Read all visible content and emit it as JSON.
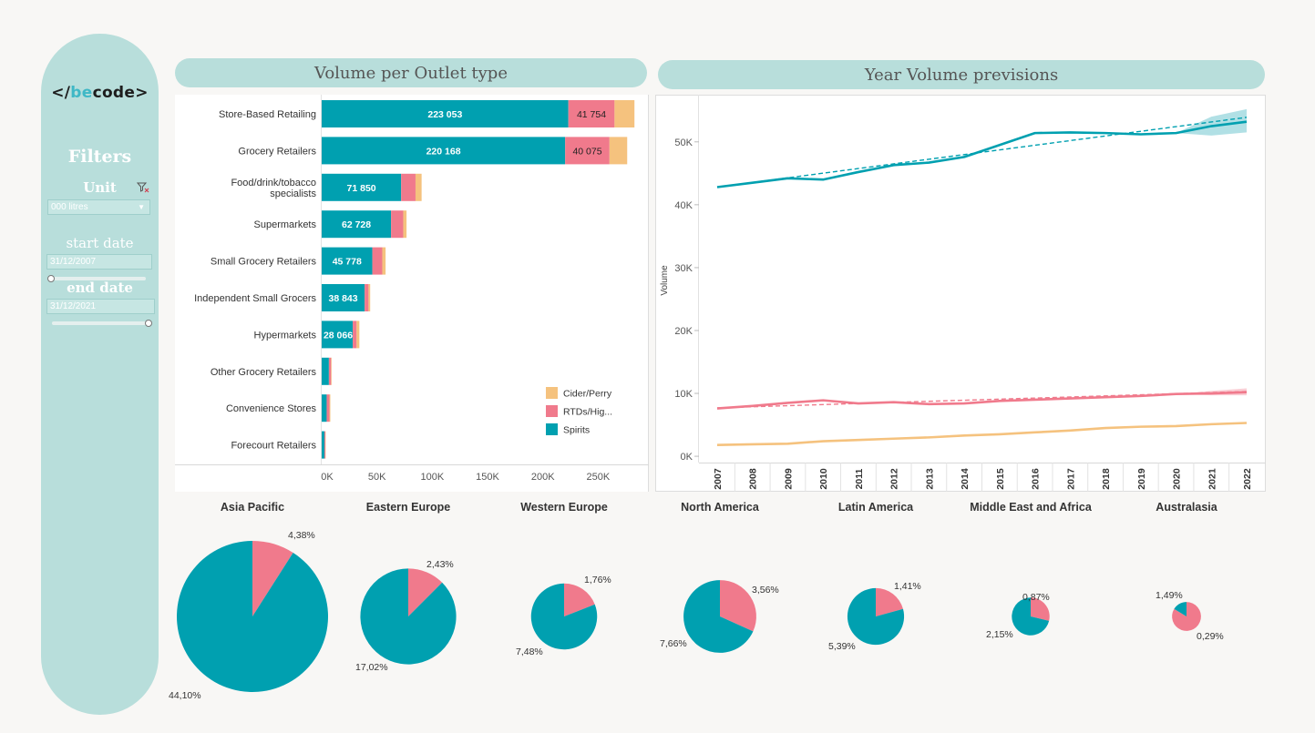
{
  "sidebar": {
    "logo_left": "</",
    "logo_highlight": "be",
    "logo_right": "code>",
    "filters_title": "Filters",
    "unit_label": "Unit",
    "unit_value": "000 litres",
    "start_label": "start date",
    "start_value": "31/12/2007",
    "end_label": "end date",
    "end_value": "31/12/2021"
  },
  "panels": {
    "left_title": "Volume per Outlet type",
    "right_title": "Year Volume previsions"
  },
  "colors": {
    "spirits": "#00a0b0",
    "rtds": "#f07a8c",
    "cider": "#f5c27e",
    "header_bg": "#b8dedb"
  },
  "chart_data": [
    {
      "type": "bar",
      "orientation": "horizontal",
      "stacked": true,
      "categories": [
        "Store-Based Retailing",
        "Grocery Retailers",
        "Food/drink/tobacco specialists",
        "Supermarkets",
        "Small Grocery Retailers",
        "Independent Small Grocers",
        "Hypermarkets",
        "Other Grocery Retailers",
        "Convenience Stores",
        "Forecourt Retailers"
      ],
      "series": [
        {
          "name": "Spirits",
          "values": [
            223053,
            220168,
            71850,
            62728,
            45778,
            38843,
            28066,
            6500,
            4500,
            2500
          ],
          "labels": [
            "223 053",
            "220 168",
            "71 850",
            "62 728",
            "45 778",
            "38 843",
            "28 066",
            "",
            "",
            ""
          ]
        },
        {
          "name": "RTDs/Hig...",
          "values": [
            41754,
            40075,
            13000,
            11000,
            9000,
            3500,
            3500,
            2000,
            2500,
            800
          ],
          "labels": [
            "41 754",
            "40 075",
            "",
            "",
            "",
            "",
            "",
            "",
            "",
            ""
          ]
        },
        {
          "name": "Cider/Perry",
          "values": [
            18000,
            16000,
            5500,
            3000,
            3000,
            1500,
            2500,
            500,
            800,
            300
          ]
        }
      ],
      "xticks": [
        0,
        50000,
        100000,
        150000,
        200000,
        250000
      ],
      "xtick_labels": [
        "0K",
        "50K",
        "100K",
        "150K",
        "200K",
        "250K"
      ],
      "xlim": [
        0,
        295000
      ],
      "legend": [
        "Cider/Perry",
        "RTDs/Hig...",
        "Spirits"
      ],
      "legend_position": "bottom-right"
    },
    {
      "type": "line",
      "ylabel": "Volume",
      "x": [
        2007,
        2008,
        2009,
        2010,
        2011,
        2012,
        2013,
        2014,
        2015,
        2016,
        2017,
        2018,
        2019,
        2020,
        2021,
        2022
      ],
      "xtick_labels": [
        "2007",
        "2008",
        "2009",
        "2010",
        "2011",
        "2012",
        "2013",
        "2014",
        "2015",
        "2016",
        "2017",
        "2018",
        "2019",
        "2020",
        "2021",
        "2022"
      ],
      "yticks": [
        0,
        10000,
        20000,
        30000,
        40000,
        50000
      ],
      "ytick_labels": [
        "0K",
        "10K",
        "20K",
        "30K",
        "40K",
        "50K"
      ],
      "ylim": [
        -1000,
        57500
      ],
      "forecast_from": 2020,
      "series": [
        {
          "name": "Spirits",
          "values": [
            42800,
            43500,
            44200,
            44000,
            45200,
            46300,
            46700,
            47600,
            49500,
            51400,
            51500,
            51400,
            51200,
            51400,
            52500,
            53200
          ],
          "trend": [
            42800,
            53900
          ],
          "band": [
            [
              2021,
              51000,
              54000
            ],
            [
              2022,
              51500,
              55200
            ]
          ]
        },
        {
          "name": "RTDs",
          "values": [
            7600,
            8000,
            8500,
            8900,
            8400,
            8600,
            8300,
            8400,
            8800,
            9000,
            9200,
            9400,
            9600,
            9900,
            10000,
            10200
          ],
          "trend": [
            7700,
            10300
          ],
          "band": [
            [
              2021,
              9700,
              10400
            ],
            [
              2022,
              9700,
              10800
            ]
          ]
        },
        {
          "name": "Cider/Perry",
          "values": [
            1800,
            1900,
            2000,
            2400,
            2600,
            2800,
            3000,
            3300,
            3500,
            3800,
            4100,
            4500,
            4700,
            4800,
            5100,
            5300
          ]
        }
      ]
    },
    {
      "type": "pie",
      "regions": [
        {
          "name": "Asia Pacific",
          "spirits_label": "44,10%",
          "rtds_label": "4,38%",
          "spirits": 44.1,
          "rtds": 4.38
        },
        {
          "name": "Eastern Europe",
          "spirits_label": "17,02%",
          "rtds_label": "2,43%",
          "spirits": 17.02,
          "rtds": 2.43
        },
        {
          "name": "Western Europe",
          "spirits_label": "7,48%",
          "rtds_label": "1,76%",
          "spirits": 7.48,
          "rtds": 1.76
        },
        {
          "name": "North America",
          "spirits_label": "7,66%",
          "rtds_label": "3,56%",
          "spirits": 7.66,
          "rtds": 3.56
        },
        {
          "name": "Latin America",
          "spirits_label": "5,39%",
          "rtds_label": "1,41%",
          "spirits": 5.39,
          "rtds": 1.41
        },
        {
          "name": "Middle East and Africa",
          "spirits_label": "2,15%",
          "rtds_label": "0,87%",
          "spirits": 2.15,
          "rtds": 0.87
        },
        {
          "name": "Australasia",
          "spirits_label": "0,29%",
          "rtds_label": "1,49%",
          "spirits": 0.29,
          "rtds": 1.49
        }
      ]
    }
  ]
}
